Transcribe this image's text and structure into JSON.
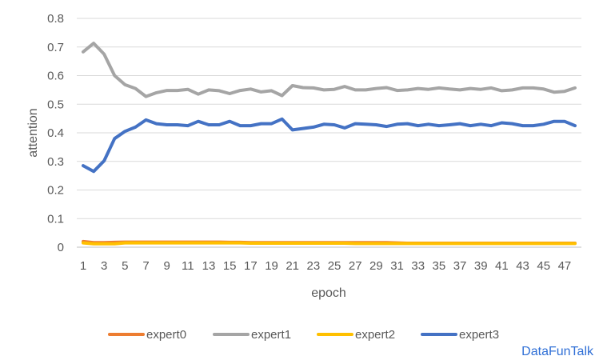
{
  "chart_data": {
    "type": "line",
    "title": "",
    "xlabel": "epoch",
    "ylabel": "attention",
    "x": [
      1,
      2,
      3,
      4,
      5,
      6,
      7,
      8,
      9,
      10,
      11,
      12,
      13,
      14,
      15,
      16,
      17,
      18,
      19,
      20,
      21,
      22,
      23,
      24,
      25,
      26,
      27,
      28,
      29,
      30,
      31,
      32,
      33,
      34,
      35,
      36,
      37,
      38,
      39,
      40,
      41,
      42,
      43,
      44,
      45,
      46,
      47,
      48
    ],
    "x_tick_labels": [
      "1",
      "3",
      "5",
      "7",
      "9",
      "11",
      "13",
      "15",
      "17",
      "19",
      "21",
      "23",
      "25",
      "27",
      "29",
      "31",
      "33",
      "35",
      "37",
      "39",
      "41",
      "43",
      "45",
      "47"
    ],
    "ylim": [
      0,
      0.8
    ],
    "y_ticks": [
      "0",
      "0.1",
      "0.2",
      "0.3",
      "0.4",
      "0.5",
      "0.6",
      "0.7",
      "0.8"
    ],
    "grid": "horizontal",
    "legend_position": "bottom",
    "series": [
      {
        "name": "expert0",
        "color": "#ed7d31",
        "values": [
          0.02,
          0.016,
          0.016,
          0.017,
          0.018,
          0.018,
          0.018,
          0.018,
          0.018,
          0.018,
          0.018,
          0.018,
          0.018,
          0.018,
          0.017,
          0.017,
          0.016,
          0.016,
          0.016,
          0.016,
          0.016,
          0.016,
          0.016,
          0.016,
          0.016,
          0.016,
          0.016,
          0.016,
          0.016,
          0.016,
          0.015,
          0.014,
          0.014,
          0.014,
          0.014,
          0.014,
          0.014,
          0.014,
          0.014,
          0.014,
          0.014,
          0.014,
          0.014,
          0.014,
          0.014,
          0.014,
          0.014,
          0.014
        ]
      },
      {
        "name": "expert1",
        "color": "#a5a5a5",
        "values": [
          0.683,
          0.713,
          0.675,
          0.6,
          0.568,
          0.555,
          0.527,
          0.54,
          0.548,
          0.548,
          0.552,
          0.535,
          0.55,
          0.547,
          0.537,
          0.548,
          0.553,
          0.543,
          0.547,
          0.53,
          0.565,
          0.558,
          0.557,
          0.55,
          0.552,
          0.562,
          0.55,
          0.55,
          0.555,
          0.558,
          0.548,
          0.55,
          0.555,
          0.552,
          0.557,
          0.553,
          0.55,
          0.555,
          0.552,
          0.557,
          0.547,
          0.55,
          0.557,
          0.557,
          0.553,
          0.542,
          0.545,
          0.557
        ]
      },
      {
        "name": "expert2",
        "color": "#ffc000",
        "values": [
          0.015,
          0.012,
          0.012,
          0.012,
          0.015,
          0.015,
          0.015,
          0.015,
          0.015,
          0.015,
          0.015,
          0.015,
          0.015,
          0.015,
          0.015,
          0.015,
          0.014,
          0.014,
          0.014,
          0.014,
          0.014,
          0.014,
          0.014,
          0.014,
          0.014,
          0.014,
          0.013,
          0.013,
          0.013,
          0.013,
          0.013,
          0.013,
          0.013,
          0.013,
          0.013,
          0.013,
          0.013,
          0.013,
          0.013,
          0.013,
          0.013,
          0.013,
          0.013,
          0.013,
          0.013,
          0.013,
          0.013,
          0.013
        ]
      },
      {
        "name": "expert3",
        "color": "#4472c4",
        "values": [
          0.285,
          0.265,
          0.302,
          0.38,
          0.405,
          0.42,
          0.445,
          0.432,
          0.428,
          0.428,
          0.425,
          0.44,
          0.428,
          0.428,
          0.44,
          0.425,
          0.425,
          0.432,
          0.432,
          0.448,
          0.41,
          0.415,
          0.42,
          0.43,
          0.428,
          0.417,
          0.432,
          0.43,
          0.428,
          0.422,
          0.43,
          0.432,
          0.425,
          0.43,
          0.425,
          0.428,
          0.432,
          0.425,
          0.43,
          0.425,
          0.435,
          0.432,
          0.425,
          0.425,
          0.43,
          0.44,
          0.44,
          0.425
        ]
      }
    ]
  },
  "watermark": "DataFunTalk"
}
